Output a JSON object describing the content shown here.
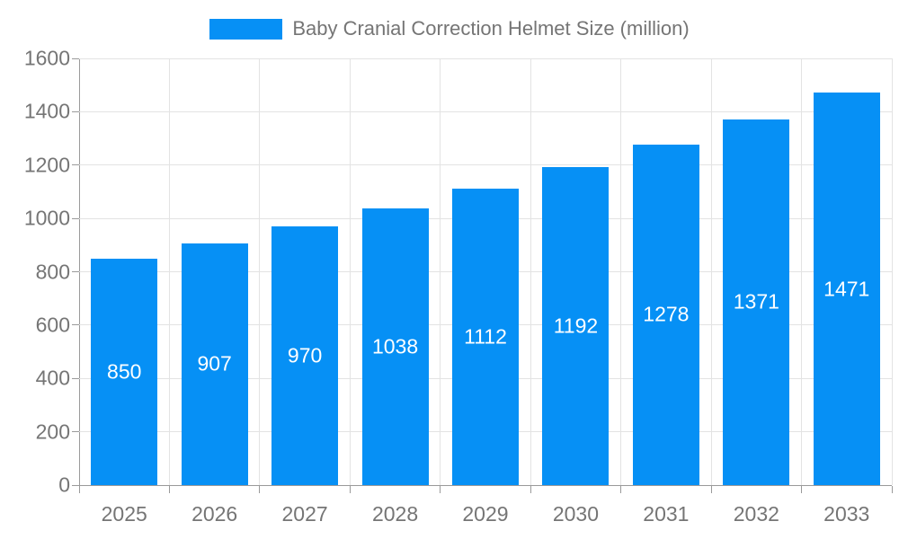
{
  "chart_data": {
    "type": "bar",
    "categories": [
      "2025",
      "2026",
      "2027",
      "2028",
      "2029",
      "2030",
      "2031",
      "2032",
      "2033"
    ],
    "series": [
      {
        "name": "Baby Cranial Correction Helmet Size (million)",
        "values": [
          850,
          907,
          970,
          1038,
          1112,
          1192,
          1278,
          1371,
          1471
        ]
      }
    ],
    "title": "Baby Cranial Correction Helmet Size (million)",
    "xlabel": "",
    "ylabel": "",
    "ylim": [
      0,
      1600
    ],
    "yticks": [
      0,
      200,
      400,
      600,
      800,
      1000,
      1200,
      1400,
      1600
    ],
    "grid": "horizontal-and-vertical",
    "legend_position": "top-center",
    "value_labels": "inside-center"
  },
  "style": {
    "bar_color": "#0690f5",
    "grid_color": "#e3e3e3",
    "axis_color": "#9a9a9a",
    "text_color": "#757575",
    "value_label_color": "#ffffff",
    "background_color": "#ffffff"
  }
}
